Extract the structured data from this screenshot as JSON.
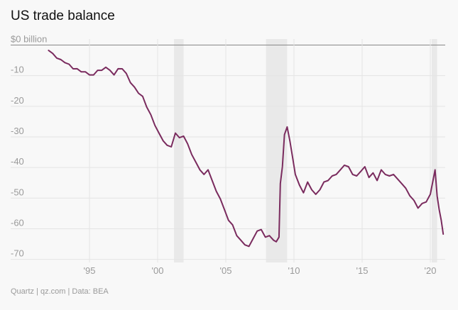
{
  "chart_data": {
    "type": "line",
    "title": "US trade balance",
    "source": "Quartz | qz.com | Data: BEA",
    "y_unit_label": "$0 billion",
    "yticks": [
      {
        "value": 0,
        "label": "$0 billion"
      },
      {
        "value": -10,
        "label": "-10"
      },
      {
        "value": -20,
        "label": "-20"
      },
      {
        "value": -30,
        "label": "-30"
      },
      {
        "value": -40,
        "label": "-40"
      },
      {
        "value": -50,
        "label": "-50"
      },
      {
        "value": -60,
        "label": "-60"
      },
      {
        "value": -70,
        "label": "-70"
      }
    ],
    "xticks": [
      {
        "value": 1995,
        "label": "'95"
      },
      {
        "value": 2000,
        "label": "'00"
      },
      {
        "value": 2005,
        "label": "'05"
      },
      {
        "value": 2010,
        "label": "'10"
      },
      {
        "value": 2015,
        "label": "'15"
      },
      {
        "value": 2020,
        "label": "'20"
      }
    ],
    "xlim": [
      1990.7,
      2021.3
    ],
    "ylim": [
      -71,
      1
    ],
    "recessions": [
      [
        2001.2,
        2001.9
      ],
      [
        2007.95,
        2009.5
      ],
      [
        2020.1,
        2020.5
      ]
    ],
    "line_color": "#7a2b5e",
    "series": [
      {
        "x": [
          1992.0,
          1992.3,
          1992.6,
          1992.9,
          1993.2,
          1993.5,
          1993.8,
          1994.1,
          1994.4,
          1994.7,
          1995.0,
          1995.3,
          1995.6,
          1995.9,
          1996.2,
          1996.5,
          1996.8,
          1997.1,
          1997.4,
          1997.7,
          1998.0,
          1998.3,
          1998.6,
          1998.9,
          1999.2,
          1999.5,
          1999.8,
          2000.1,
          2000.4,
          2000.7,
          2001.0,
          2001.3,
          2001.6,
          2001.9,
          2002.2,
          2002.5,
          2002.8,
          2003.1,
          2003.4,
          2003.7,
          2004.0,
          2004.3,
          2004.6,
          2004.9,
          2005.2,
          2005.5,
          2005.8,
          2006.1,
          2006.4,
          2006.7,
          2007.0,
          2007.3,
          2007.6,
          2007.9,
          2008.2,
          2008.5,
          2008.7,
          2008.9,
          2009.0,
          2009.15,
          2009.3,
          2009.5,
          2009.7,
          2009.9,
          2010.1,
          2010.4,
          2010.7,
          2011.0,
          2011.3,
          2011.6,
          2011.9,
          2012.2,
          2012.5,
          2012.8,
          2013.1,
          2013.4,
          2013.7,
          2014.0,
          2014.3,
          2014.6,
          2014.9,
          2015.2,
          2015.5,
          2015.8,
          2016.1,
          2016.4,
          2016.7,
          2017.0,
          2017.3,
          2017.6,
          2017.9,
          2018.2,
          2018.5,
          2018.8,
          2019.1,
          2019.4,
          2019.7,
          2020.0,
          2020.2,
          2020.35,
          2020.5,
          2020.65,
          2020.8,
          2020.95
        ],
        "y": [
          -1.5,
          -3,
          -4,
          -5,
          -5.5,
          -6.5,
          -7.5,
          -8,
          -8.5,
          -9,
          -9.5,
          -10,
          -8,
          -8.5,
          -7,
          -8.5,
          -9.5,
          -8,
          -7.5,
          -9.5,
          -12,
          -14,
          -15.5,
          -17,
          -20,
          -23,
          -26,
          -29,
          -31,
          -33,
          -33,
          -29,
          -30,
          -30,
          -32,
          -36,
          -38,
          -41,
          -42,
          -41,
          -44,
          -48,
          -50,
          -54,
          -57,
          -59,
          -62,
          -64,
          -65,
          -66,
          -63,
          -61,
          -60,
          -63,
          -62,
          -64,
          -64,
          -63,
          -45,
          -40,
          -29,
          -27,
          -31,
          -37,
          -42,
          -46,
          -48,
          -45,
          -47,
          -49,
          -47,
          -45,
          -44,
          -43,
          -42,
          -41,
          -39,
          -40,
          -42,
          -43,
          -41,
          -40,
          -43,
          -42,
          -44,
          -41,
          -42,
          -43,
          -42,
          -44,
          -45,
          -47,
          -49,
          -51,
          -53,
          -52,
          -51,
          -49,
          -44,
          -41,
          -49,
          -54,
          -57,
          -62
        ]
      }
    ]
  }
}
